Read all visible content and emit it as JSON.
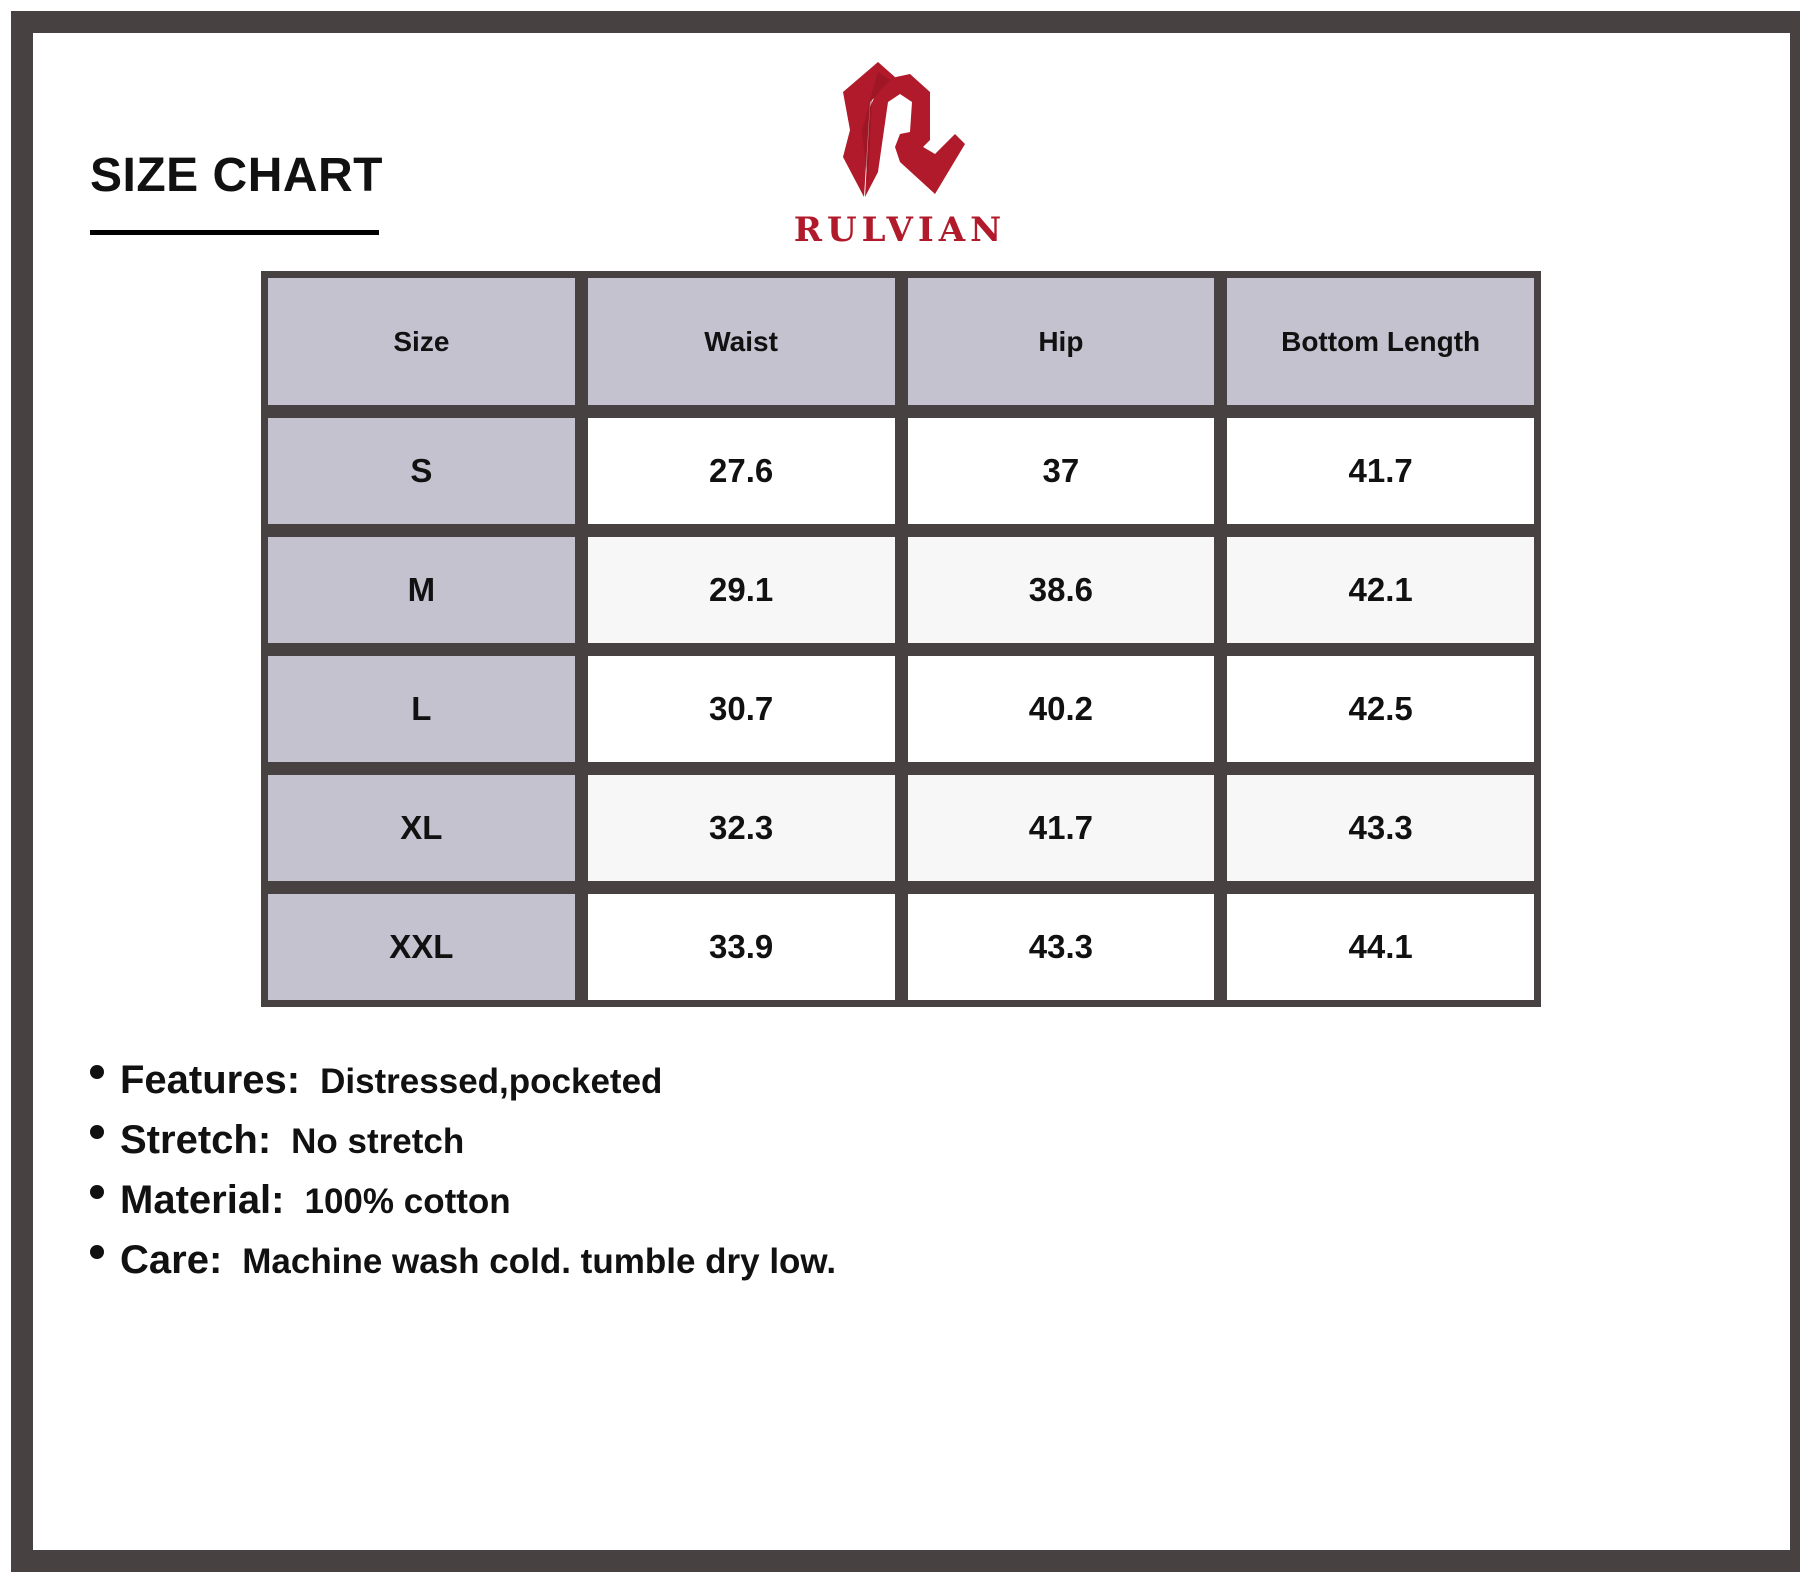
{
  "title": "SIZE CHART",
  "brand": {
    "name": "RULVIAN",
    "color": "#b01a2a",
    "icon": "r-monogram-logo"
  },
  "table": {
    "headers": [
      "Size",
      "Waist",
      "Hip",
      "Bottom Length"
    ],
    "rows": [
      [
        "S",
        "27.6",
        "37",
        "41.7"
      ],
      [
        "M",
        "29.1",
        "38.6",
        "42.1"
      ],
      [
        "L",
        "30.7",
        "40.2",
        "42.5"
      ],
      [
        "XL",
        "32.3",
        "41.7",
        "43.3"
      ],
      [
        "XXL",
        "33.9",
        "43.3",
        "44.1"
      ]
    ]
  },
  "details": [
    {
      "label": "Features:",
      "value": "Distressed,pocketed"
    },
    {
      "label": "Stretch:",
      "value": "No stretch"
    },
    {
      "label": "Material:",
      "value": "100% cotton"
    },
    {
      "label": "Care:",
      "value": "Machine wash cold. tumble dry low."
    }
  ],
  "colors": {
    "frame": "#474141",
    "header_bg": "#c4c2cf",
    "alt_row": "#f7f7f7",
    "accent": "#b01a2a"
  }
}
